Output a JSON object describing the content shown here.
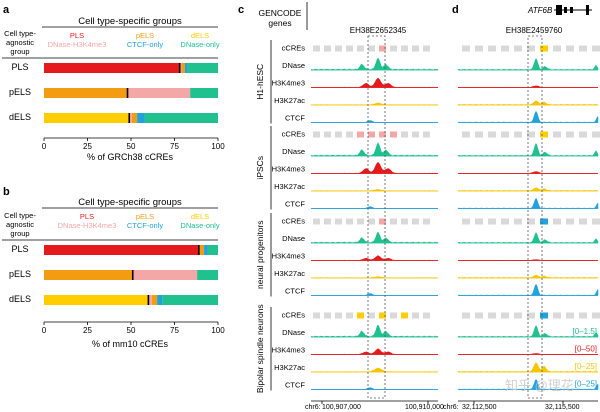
{
  "colors": {
    "pls": "#e41a1c",
    "pls_light": "#f4a7a7",
    "pels": "#f39c12",
    "dels": "#ffcd00",
    "ctcf": "#22a2dd",
    "dnase": "#20c08f",
    "h3k4me3": "#e41a1c",
    "h3k27ac": "#f6c400",
    "gray": "#d9d9d9",
    "pink": "#f4a7a7"
  },
  "panel_a": {
    "letter": "a",
    "title": "Cell type-specific groups",
    "agnostic_label": [
      "Cell type-",
      "agnostic",
      "group"
    ],
    "legend": {
      "pls": "PLS",
      "pls_sub": "DNase-H3K4me3",
      "pels": "pELS",
      "pels_sub": "CTCF-only",
      "dels": "dELS",
      "dels_sub": "DNase-only"
    },
    "rows": [
      {
        "label": "PLS",
        "segments": [
          [
            "pls",
            78
          ],
          [
            "pls_light",
            1
          ],
          [
            "pels",
            2
          ],
          [
            "ctcf",
            1.5
          ],
          [
            "dnase",
            17.5
          ]
        ],
        "mark": 78
      },
      {
        "label": "pELS",
        "segments": [
          [
            "pels",
            48
          ],
          [
            "pls_light",
            36
          ],
          [
            "dnase",
            16
          ]
        ],
        "mark": 48
      },
      {
        "label": "dELS",
        "segments": [
          [
            "dels",
            49
          ],
          [
            "pls_light",
            1.5
          ],
          [
            "pels",
            3
          ],
          [
            "ctcf",
            4.5
          ],
          [
            "dnase",
            42
          ]
        ],
        "mark": 49
      }
    ],
    "xticks": [
      "0",
      "25",
      "50",
      "75",
      "100"
    ],
    "xlabel": "% of GRCh38 cCREs"
  },
  "panel_b": {
    "letter": "b",
    "title": "Cell type-specific groups",
    "agnostic_label": [
      "Cell type-",
      "agnostic",
      "group"
    ],
    "legend": {
      "pls": "PLS",
      "pls_sub": "DNase-H3K4me3",
      "pels": "pELS",
      "pels_sub": "CTCF-only",
      "dels": "dELS",
      "dels_sub": "DNase-only"
    },
    "rows": [
      {
        "label": "PLS",
        "segments": [
          [
            "pls",
            89
          ],
          [
            "pels",
            3
          ],
          [
            "ctcf",
            2
          ],
          [
            "dnase",
            6
          ]
        ],
        "mark": 89
      },
      {
        "label": "pELS",
        "segments": [
          [
            "pels",
            51
          ],
          [
            "pls_light",
            37
          ],
          [
            "dnase",
            12
          ]
        ],
        "mark": 51
      },
      {
        "label": "dELS",
        "segments": [
          [
            "dels",
            60
          ],
          [
            "pls_light",
            2
          ],
          [
            "pels",
            3
          ],
          [
            "ctcf",
            3
          ],
          [
            "dnase",
            32
          ]
        ],
        "mark": 60
      }
    ],
    "xticks": [
      "0",
      "25",
      "50",
      "75",
      "100"
    ],
    "xlabel": "% of mm10 cCREs"
  },
  "panel_c": {
    "letter": "c",
    "gencode": [
      "GENCODE",
      "genes"
    ],
    "element_id": "EH38E2652345",
    "chr": "chr6:",
    "coord_left": "100,907,000",
    "coord_right": "100,910,000"
  },
  "panel_d": {
    "letter": "d",
    "gene": "ATF6B",
    "element_id": "EH38E2459760",
    "chr": "chr6:",
    "coord_left": "32,112,500",
    "coord_right": "32,115,500"
  },
  "tracks": [
    "cCREs",
    "DNase",
    "H3K4me3",
    "H3K27ac",
    "CTCF"
  ],
  "cell_groups": [
    {
      "name": "H1-hESC",
      "c_ccre": "pink",
      "d_ccre": "dels"
    },
    {
      "name": "iPSCs",
      "c_ccre": "pink",
      "d_ccre": "dels"
    },
    {
      "name": "neural progenitors",
      "c_ccre": "pink",
      "d_ccre": "ctcf"
    },
    {
      "name": "Bipolar spindle neurons",
      "c_ccre": "dels",
      "d_ccre": "ctcf"
    }
  ],
  "scales": [
    {
      "text": "[0–1.5]",
      "color": "dnase"
    },
    {
      "text": "[0–50]",
      "color": "h3k4me3"
    },
    {
      "text": "[0–25]",
      "color": "h3k27ac"
    },
    {
      "text": "[0–25]",
      "color": "ctcf"
    }
  ],
  "watermark": "知乎 @理花"
}
